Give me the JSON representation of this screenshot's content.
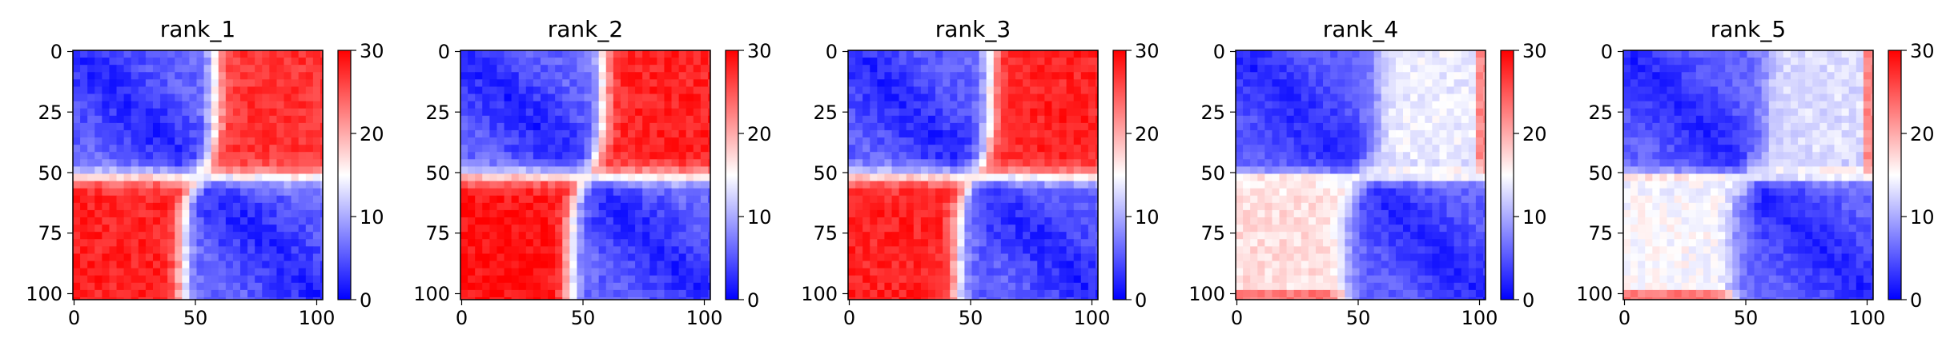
{
  "figure": {
    "panels": [
      {
        "title": "rank_1"
      },
      {
        "title": "rank_2"
      },
      {
        "title": "rank_3"
      },
      {
        "title": "rank_4"
      },
      {
        "title": "rank_5"
      }
    ]
  },
  "chart_data": [
    {
      "type": "heatmap",
      "title": "rank_1",
      "matrix_size": 103,
      "xlabel": "",
      "ylabel": "",
      "xticks": [
        "0",
        "50",
        "100"
      ],
      "yticks": [
        "0",
        "25",
        "50",
        "75",
        "100"
      ],
      "colorbar": {
        "ticks": [
          "0",
          "10",
          "20",
          "30"
        ],
        "range": [
          0,
          30
        ]
      },
      "colormap": "bwr",
      "colors": {
        "low": "#0000ff",
        "mid": "#ffffff",
        "high": "#ff0000"
      },
      "structure": {
        "boundary": 52,
        "boundary_shift": 7,
        "within_domain_value": 2,
        "between_domain_value": 28,
        "upper_right_block_value": 27,
        "lower_left_block_value": 28,
        "noise": 3.5
      }
    },
    {
      "type": "heatmap",
      "title": "rank_2",
      "matrix_size": 103,
      "xlabel": "",
      "ylabel": "",
      "xticks": [
        "0",
        "50",
        "100"
      ],
      "yticks": [
        "0",
        "25",
        "50",
        "75",
        "100"
      ],
      "colorbar": {
        "ticks": [
          "0",
          "10",
          "20",
          "30"
        ],
        "range": [
          0,
          30
        ]
      },
      "colormap": "bwr",
      "colors": {
        "low": "#0000ff",
        "mid": "#ffffff",
        "high": "#ff0000"
      },
      "structure": {
        "boundary": 52,
        "boundary_shift": 7,
        "within_domain_value": 2,
        "between_domain_value": 29,
        "upper_right_block_value": 28,
        "lower_left_block_value": 29,
        "noise": 3.5
      }
    },
    {
      "type": "heatmap",
      "title": "rank_3",
      "matrix_size": 103,
      "xlabel": "",
      "ylabel": "",
      "xticks": [
        "0",
        "50",
        "100"
      ],
      "yticks": [
        "0",
        "25",
        "50",
        "75",
        "100"
      ],
      "colorbar": {
        "ticks": [
          "0",
          "10",
          "20",
          "30"
        ],
        "range": [
          0,
          30
        ]
      },
      "colormap": "bwr",
      "colors": {
        "low": "#0000ff",
        "mid": "#ffffff",
        "high": "#ff0000"
      },
      "structure": {
        "boundary": 52,
        "boundary_shift": 7,
        "within_domain_value": 2,
        "between_domain_value": 28,
        "upper_right_block_value": 28,
        "lower_left_block_value": 28,
        "noise": 3.5
      }
    },
    {
      "type": "heatmap",
      "title": "rank_4",
      "matrix_size": 103,
      "xlabel": "",
      "ylabel": "",
      "xticks": [
        "0",
        "50",
        "100"
      ],
      "yticks": [
        "0",
        "25",
        "50",
        "75",
        "100"
      ],
      "colorbar": {
        "ticks": [
          "0",
          "10",
          "20",
          "30"
        ],
        "range": [
          0,
          30
        ]
      },
      "colormap": "bwr",
      "colors": {
        "low": "#0000ff",
        "mid": "#ffffff",
        "high": "#ff0000"
      },
      "structure": {
        "boundary": 52,
        "boundary_shift": 7,
        "within_domain_value": 2,
        "between_domain_value": 15,
        "upper_right_block_value": 14,
        "lower_left_block_value": 17,
        "band_value": 27,
        "noise": 3.0
      }
    },
    {
      "type": "heatmap",
      "title": "rank_5",
      "matrix_size": 103,
      "xlabel": "",
      "ylabel": "",
      "xticks": [
        "0",
        "50",
        "100"
      ],
      "yticks": [
        "0",
        "25",
        "50",
        "75",
        "100"
      ],
      "colorbar": {
        "ticks": [
          "0",
          "10",
          "20",
          "30"
        ],
        "range": [
          0,
          30
        ]
      },
      "colormap": "bwr",
      "colors": {
        "low": "#0000ff",
        "mid": "#ffffff",
        "high": "#ff0000"
      },
      "structure": {
        "boundary": 52,
        "boundary_shift": 7,
        "within_domain_value": 2,
        "between_domain_value": 14,
        "upper_right_block_value": 13,
        "lower_left_block_value": 15,
        "band_value": 28,
        "noise": 3.0
      }
    }
  ]
}
